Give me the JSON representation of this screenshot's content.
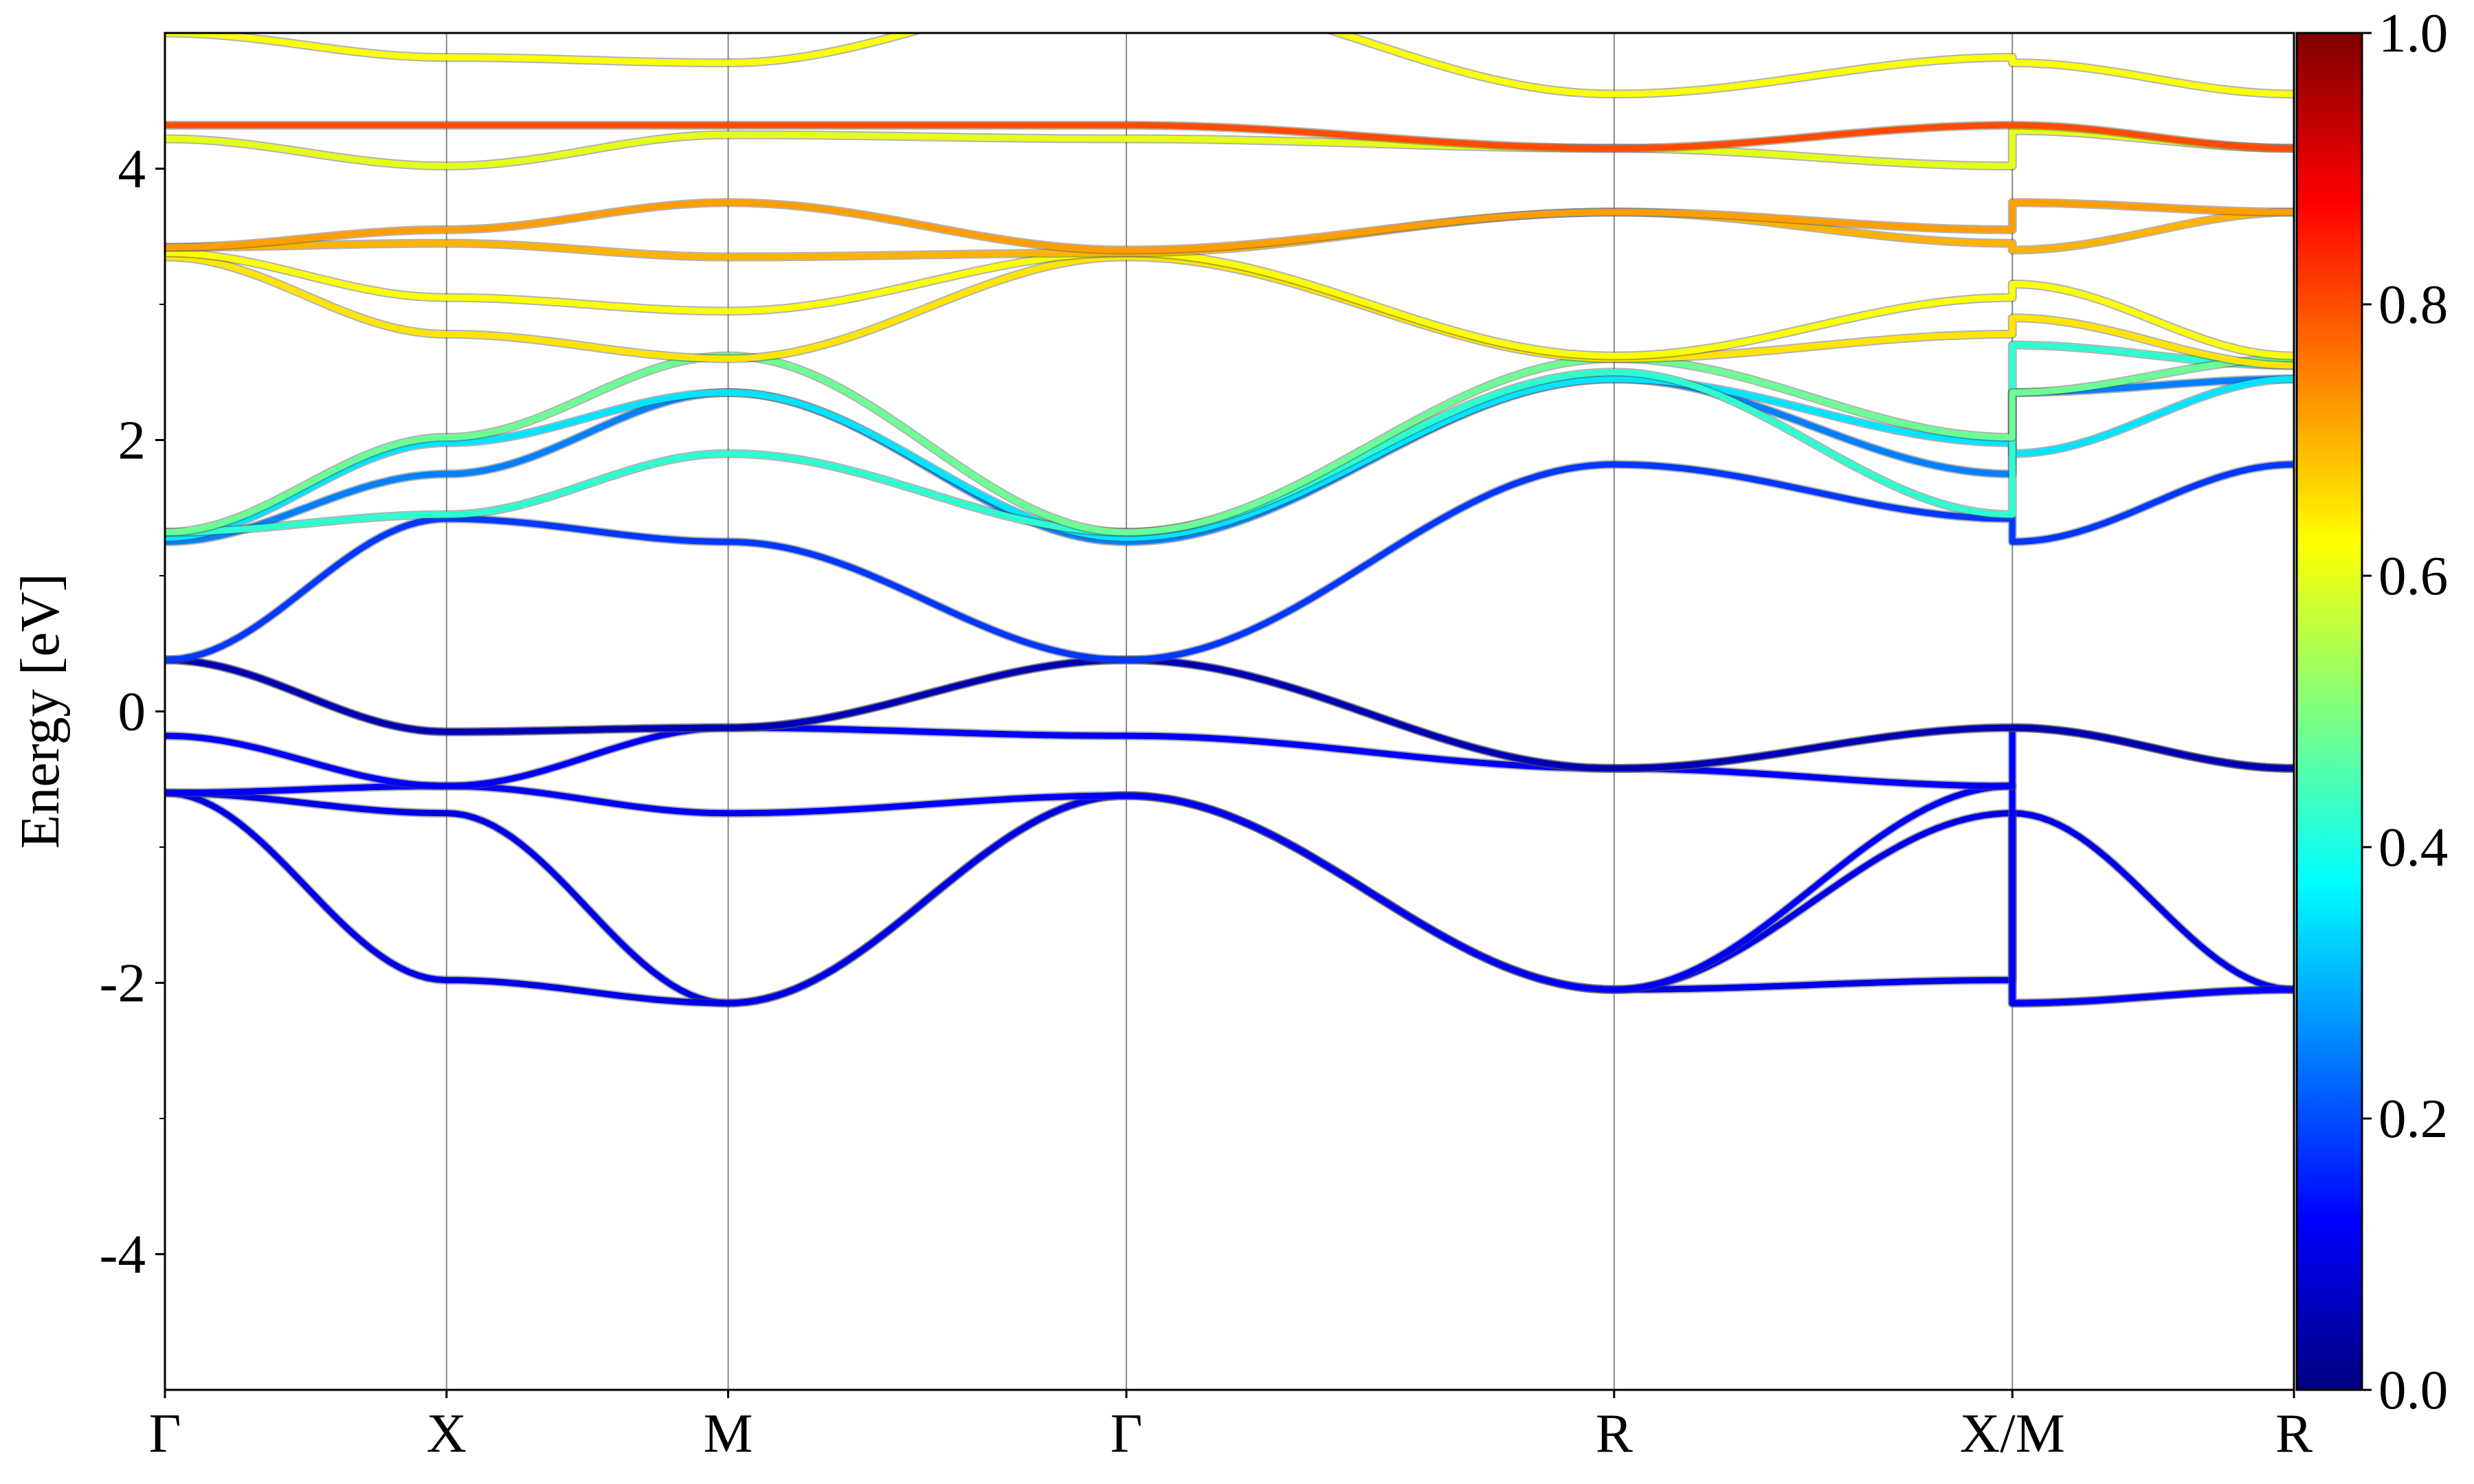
{
  "chart_data": {
    "type": "line",
    "title": "",
    "xlabel": "",
    "ylabel": "Energy [eV]",
    "ylim": [
      -5,
      5
    ],
    "grid": "vertical lines at high-symmetry points",
    "legend": "none",
    "k_points": [
      {
        "label": "Γ",
        "x": 0.0
      },
      {
        "label": "X",
        "x": 0.5
      },
      {
        "label": "M",
        "x": 1.0
      },
      {
        "label": "Γ",
        "x": 1.707
      },
      {
        "label": "R",
        "x": 2.573
      },
      {
        "label": "X/M",
        "x": 3.28
      },
      {
        "label": "R",
        "x": 3.78
      }
    ],
    "xlim": [
      0.0,
      3.78
    ],
    "y_ticks": [
      {
        "value": 4,
        "label": "4"
      },
      {
        "value": 2,
        "label": "2"
      },
      {
        "value": 0,
        "label": "0"
      },
      {
        "value": -2,
        "label": "-2"
      },
      {
        "value": -4,
        "label": "-4"
      }
    ],
    "y_minor_ticks": [
      -3,
      -1,
      1,
      3
    ],
    "colorbar": {
      "colormap": "jet",
      "range": [
        0.0,
        1.0
      ],
      "ticks": [
        {
          "value": 0.0,
          "label": "0.0"
        },
        {
          "value": 0.2,
          "label": "0.2"
        },
        {
          "value": 0.4,
          "label": "0.4"
        },
        {
          "value": 0.6,
          "label": "0.6"
        },
        {
          "value": 0.8,
          "label": "0.8"
        },
        {
          "value": 1.0,
          "label": "1.0"
        }
      ]
    },
    "bands": [
      {
        "name": "b1",
        "w": 0.1,
        "points": [
          [
            0,
            -0.6
          ],
          [
            0.5,
            -0.75
          ],
          [
            1.0,
            -2.15
          ],
          [
            1.707,
            -0.62
          ],
          [
            2.573,
            -2.05
          ],
          [
            3.28,
            -0.75
          ],
          [
            3.28,
            -2.15
          ],
          [
            3.78,
            -2.05
          ]
        ]
      },
      {
        "name": "b2",
        "w": 0.1,
        "points": [
          [
            0,
            -0.6
          ],
          [
            0.5,
            -1.98
          ],
          [
            1.0,
            -2.15
          ],
          [
            1.707,
            -0.62
          ],
          [
            2.573,
            -2.05
          ],
          [
            3.28,
            -1.98
          ],
          [
            3.28,
            -0.75
          ],
          [
            3.78,
            -2.05
          ]
        ]
      },
      {
        "name": "b3",
        "w": 0.12,
        "points": [
          [
            0,
            -0.6
          ],
          [
            0.5,
            -0.55
          ],
          [
            1.0,
            -0.75
          ],
          [
            1.707,
            -0.62
          ],
          [
            2.573,
            -2.05
          ],
          [
            3.28,
            -0.55
          ],
          [
            3.28,
            -2.15
          ],
          [
            3.78,
            -2.05
          ]
        ]
      },
      {
        "name": "b4",
        "w": 0.12,
        "points": [
          [
            0,
            -0.18
          ],
          [
            0.5,
            -0.55
          ],
          [
            1.0,
            -0.12
          ],
          [
            1.707,
            -0.18
          ],
          [
            2.573,
            -0.42
          ],
          [
            3.28,
            -0.55
          ],
          [
            3.28,
            -0.12
          ],
          [
            3.78,
            -0.42
          ]
        ]
      },
      {
        "name": "b5",
        "w": 0.05,
        "points": [
          [
            0,
            0.38
          ],
          [
            0.5,
            -0.15
          ],
          [
            1.0,
            -0.12
          ],
          [
            1.707,
            0.38
          ],
          [
            2.573,
            -0.42
          ],
          [
            3.28,
            -0.12
          ],
          [
            3.28,
            -0.12
          ],
          [
            3.78,
            -0.42
          ]
        ]
      },
      {
        "name": "b6",
        "w": 0.05,
        "points": [
          [
            0,
            0.38
          ],
          [
            0.5,
            -0.15
          ],
          [
            1.0,
            -0.12
          ],
          [
            1.707,
            0.38
          ],
          [
            2.573,
            -0.42
          ],
          [
            3.28,
            -0.12
          ],
          [
            3.28,
            -0.12
          ],
          [
            3.78,
            -0.42
          ]
        ]
      },
      {
        "name": "b7",
        "w": 0.18,
        "points": [
          [
            0,
            0.38
          ],
          [
            0.5,
            1.42
          ],
          [
            1.0,
            1.25
          ],
          [
            1.707,
            0.38
          ],
          [
            2.573,
            1.82
          ],
          [
            3.28,
            1.42
          ],
          [
            3.28,
            1.25
          ],
          [
            3.78,
            1.82
          ]
        ]
      },
      {
        "name": "b8",
        "w": 0.25,
        "points": [
          [
            0,
            1.25
          ],
          [
            0.5,
            1.75
          ],
          [
            1.0,
            2.35
          ],
          [
            1.707,
            1.25
          ],
          [
            2.573,
            2.45
          ],
          [
            3.28,
            1.75
          ],
          [
            3.28,
            2.35
          ],
          [
            3.78,
            2.45
          ]
        ]
      },
      {
        "name": "b9",
        "w": 0.35,
        "points": [
          [
            0,
            1.28
          ],
          [
            0.5,
            1.98
          ],
          [
            1.0,
            2.35
          ],
          [
            1.707,
            1.28
          ],
          [
            2.573,
            2.45
          ],
          [
            3.28,
            1.98
          ],
          [
            3.28,
            1.9
          ],
          [
            3.78,
            2.45
          ]
        ]
      },
      {
        "name": "b10",
        "w": 0.42,
        "points": [
          [
            0,
            1.32
          ],
          [
            0.5,
            1.45
          ],
          [
            1.0,
            1.9
          ],
          [
            1.707,
            1.32
          ],
          [
            2.573,
            2.5
          ],
          [
            3.28,
            1.45
          ],
          [
            3.28,
            2.7
          ],
          [
            3.78,
            2.55
          ]
        ]
      },
      {
        "name": "b11",
        "w": 0.48,
        "points": [
          [
            0,
            1.32
          ],
          [
            0.5,
            2.02
          ],
          [
            1.0,
            2.62
          ],
          [
            1.707,
            1.32
          ],
          [
            2.573,
            2.6
          ],
          [
            3.28,
            2.02
          ],
          [
            3.28,
            2.35
          ],
          [
            3.78,
            2.6
          ]
        ]
      },
      {
        "name": "b12",
        "w": 0.65,
        "points": [
          [
            0,
            3.35
          ],
          [
            0.5,
            2.78
          ],
          [
            1.0,
            2.6
          ],
          [
            1.707,
            3.35
          ],
          [
            2.573,
            2.6
          ],
          [
            3.28,
            2.78
          ],
          [
            3.28,
            2.9
          ],
          [
            3.78,
            2.55
          ]
        ]
      },
      {
        "name": "b13",
        "w": 0.62,
        "points": [
          [
            0,
            3.38
          ],
          [
            0.5,
            3.05
          ],
          [
            1.0,
            2.95
          ],
          [
            1.707,
            3.38
          ],
          [
            2.573,
            2.62
          ],
          [
            3.28,
            3.05
          ],
          [
            3.28,
            3.15
          ],
          [
            3.78,
            2.62
          ]
        ]
      },
      {
        "name": "b14",
        "w": 0.7,
        "points": [
          [
            0,
            3.42
          ],
          [
            0.5,
            3.45
          ],
          [
            1.0,
            3.35
          ],
          [
            1.707,
            3.38
          ],
          [
            2.573,
            3.68
          ],
          [
            3.28,
            3.45
          ],
          [
            3.28,
            3.4
          ],
          [
            3.78,
            3.68
          ]
        ]
      },
      {
        "name": "b15",
        "w": 0.72,
        "points": [
          [
            0,
            3.42
          ],
          [
            0.5,
            3.55
          ],
          [
            1.0,
            3.75
          ],
          [
            1.707,
            3.4
          ],
          [
            2.573,
            3.68
          ],
          [
            3.28,
            3.55
          ],
          [
            3.28,
            3.75
          ],
          [
            3.78,
            3.68
          ]
        ]
      },
      {
        "name": "b16",
        "w": 0.6,
        "points": [
          [
            0,
            4.22
          ],
          [
            0.5,
            4.02
          ],
          [
            1.0,
            4.25
          ],
          [
            1.707,
            4.22
          ],
          [
            2.573,
            4.15
          ],
          [
            3.28,
            4.02
          ],
          [
            3.28,
            4.28
          ],
          [
            3.78,
            4.15
          ]
        ]
      },
      {
        "name": "b17",
        "w": 0.8,
        "points": [
          [
            0,
            4.32
          ],
          [
            0.5,
            4.32
          ],
          [
            1.0,
            4.32
          ],
          [
            1.707,
            4.32
          ],
          [
            2.573,
            4.15
          ],
          [
            3.28,
            4.32
          ],
          [
            3.28,
            4.32
          ],
          [
            3.78,
            4.15
          ]
        ]
      },
      {
        "name": "b18",
        "w": 0.62,
        "points": [
          [
            0,
            5.0
          ],
          [
            0.5,
            4.82
          ],
          [
            1.0,
            4.78
          ],
          [
            1.707,
            5.3
          ],
          [
            2.573,
            4.55
          ],
          [
            3.28,
            4.82
          ],
          [
            3.28,
            4.78
          ],
          [
            3.78,
            4.55
          ]
        ]
      }
    ]
  }
}
